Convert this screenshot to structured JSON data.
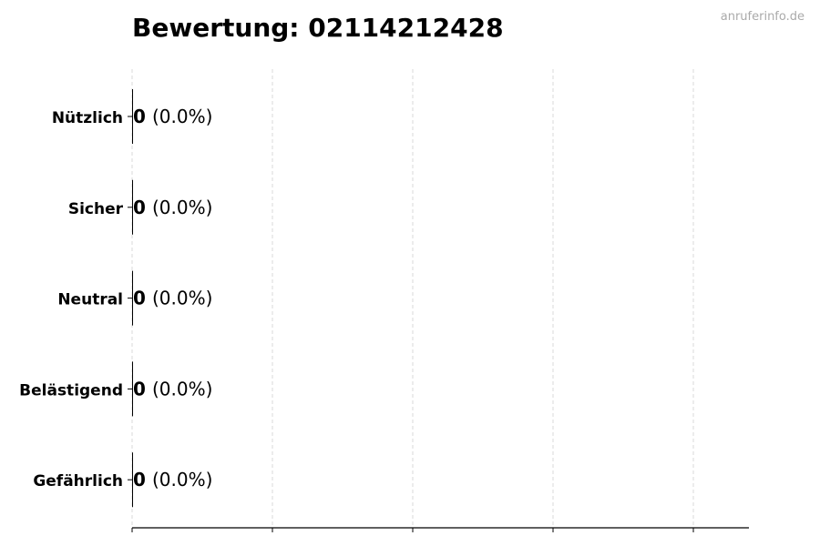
{
  "watermark": "anruferinfo.de",
  "chart_data": {
    "type": "bar",
    "orientation": "horizontal",
    "title": "Bewertung: 02114212428",
    "xlabel": "",
    "ylabel": "",
    "categories": [
      "Nützlich",
      "Sicher",
      "Neutral",
      "Belästigend",
      "Gefährlich"
    ],
    "values": [
      0,
      0,
      0,
      0,
      0
    ],
    "data_labels": [
      {
        "count": "0",
        "percent": "(0.0%)"
      },
      {
        "count": "0",
        "percent": "(0.0%)"
      },
      {
        "count": "0",
        "percent": "(0.0%)"
      },
      {
        "count": "0",
        "percent": "(0.0%)"
      },
      {
        "count": "0",
        "percent": "(0.0%)"
      }
    ],
    "x_tick_count": 5,
    "x_tick_labels_shown": false,
    "grid": "vertical dashed",
    "colors": {
      "bar_edge": "#000000",
      "grid": "#d9d9d9",
      "watermark": "#aaaaaa"
    }
  }
}
